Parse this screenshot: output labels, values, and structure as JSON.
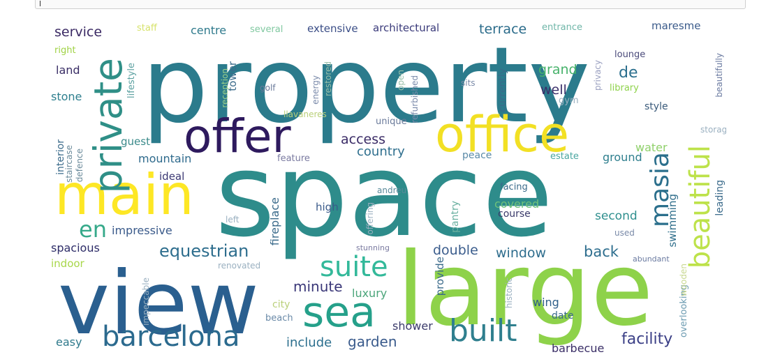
{
  "input": {
    "value": ""
  },
  "wordcloud": {
    "background": "#ffffff",
    "palette": "viridis",
    "words": [
      {
        "text": "property",
        "color": "#2b7b8c"
      },
      {
        "text": "space",
        "color": "#2e8c8b"
      },
      {
        "text": "view",
        "color": "#2a5f8f"
      },
      {
        "text": "large",
        "color": "#8ed24a"
      },
      {
        "text": "main",
        "color": "#fde725"
      },
      {
        "text": "office",
        "color": "#f2e024"
      },
      {
        "text": "offer",
        "color": "#2e1a5e"
      },
      {
        "text": "private",
        "color": "#2f8f87"
      },
      {
        "text": "sea",
        "color": "#25a08a"
      },
      {
        "text": "barcelona",
        "color": "#2b6a8e"
      },
      {
        "text": "built",
        "color": "#2f7f8e"
      },
      {
        "text": "suite",
        "color": "#33b99a"
      },
      {
        "text": "beautiful",
        "color": "#bde24a"
      },
      {
        "text": "masia",
        "color": "#2b6f8c"
      },
      {
        "text": "en",
        "color": "#36a98a"
      },
      {
        "text": "equestrian",
        "color": "#2d6d8d"
      },
      {
        "text": "service",
        "color": "#3b2a64"
      },
      {
        "text": "terrace",
        "color": "#2a6b8a"
      },
      {
        "text": "facility",
        "color": "#3b3f86"
      },
      {
        "text": "garden",
        "color": "#3a5b8c"
      },
      {
        "text": "include",
        "color": "#2c6f8e"
      },
      {
        "text": "grand",
        "color": "#47b26b"
      },
      {
        "text": "de",
        "color": "#2b6f8e"
      },
      {
        "text": "well",
        "color": "#3a2e69"
      },
      {
        "text": "window",
        "color": "#2e6d8d"
      },
      {
        "text": "back",
        "color": "#2e6e8e"
      },
      {
        "text": "double",
        "color": "#3a5c8c"
      },
      {
        "text": "minute",
        "color": "#3a3778"
      },
      {
        "text": "luxury",
        "color": "#4ba57a"
      },
      {
        "text": "access",
        "color": "#3a2b66"
      },
      {
        "text": "country",
        "color": "#2f6f8e"
      },
      {
        "text": "mountain",
        "color": "#2e6a8c"
      },
      {
        "text": "impressive",
        "color": "#3a5a8a"
      },
      {
        "text": "spacious",
        "color": "#2e2d68"
      },
      {
        "text": "indoor",
        "color": "#a8d74a"
      },
      {
        "text": "stone",
        "color": "#2e7f8e"
      },
      {
        "text": "land",
        "color": "#3a2e66"
      },
      {
        "text": "right",
        "color": "#9fd243"
      },
      {
        "text": "guest",
        "color": "#3a8a8a"
      },
      {
        "text": "ideal",
        "color": "#3a3772"
      },
      {
        "text": "easy",
        "color": "#2f7a8c"
      },
      {
        "text": "centre",
        "color": "#2f7a8c"
      },
      {
        "text": "staff",
        "color": "#d6e26a"
      },
      {
        "text": "several",
        "color": "#80c8a0"
      },
      {
        "text": "extensive",
        "color": "#3a4d86"
      },
      {
        "text": "architectural",
        "color": "#3a3a7a"
      },
      {
        "text": "entrance",
        "color": "#6fb6a8"
      },
      {
        "text": "maresme",
        "color": "#3a5a8a"
      },
      {
        "text": "lounge",
        "color": "#4a4a7a"
      },
      {
        "text": "library",
        "color": "#8ed24a"
      },
      {
        "text": "style",
        "color": "#3a5a7a"
      },
      {
        "text": "water",
        "color": "#8fd06a"
      },
      {
        "text": "ground",
        "color": "#2f7f8e"
      },
      {
        "text": "estate",
        "color": "#4aa6a0"
      },
      {
        "text": "second",
        "color": "#2f8f8e"
      },
      {
        "text": "swimming",
        "color": "#2e6d8a"
      },
      {
        "text": "leading",
        "color": "#3a6a8a"
      },
      {
        "text": "wing",
        "color": "#2f5f8a"
      },
      {
        "text": "date",
        "color": "#3a6a8a"
      },
      {
        "text": "shower",
        "color": "#3a3a6a"
      },
      {
        "text": "barbecue",
        "color": "#3a2e66"
      },
      {
        "text": "covered",
        "color": "#6fc27a"
      },
      {
        "text": "course",
        "color": "#3a3a6a"
      },
      {
        "text": "high",
        "color": "#3a5a8a"
      },
      {
        "text": "fireplace",
        "color": "#3a6a8a"
      },
      {
        "text": "peace",
        "color": "#5a8aa8"
      },
      {
        "text": "feature",
        "color": "#7a7aa0"
      },
      {
        "text": "unique",
        "color": "#6a7a9a"
      },
      {
        "text": "golf",
        "color": "#6a7a9a"
      },
      {
        "text": "tower",
        "color": "#3a6a8a"
      },
      {
        "text": "lifestyle",
        "color": "#5aa0a0"
      },
      {
        "text": "interior",
        "color": "#3a6a8a"
      },
      {
        "text": "staircase",
        "color": "#6a8a9a"
      },
      {
        "text": "defence",
        "color": "#6a8a9a"
      },
      {
        "text": "reception",
        "color": "#9ad08a"
      },
      {
        "text": "llavaneres",
        "color": "#bad07a"
      },
      {
        "text": "energy",
        "color": "#7a8aaa"
      },
      {
        "text": "restored",
        "color": "#9ac0aa"
      },
      {
        "text": "refurbished",
        "color": "#7a8aaa"
      },
      {
        "text": "currently",
        "color": "#3a6a8a"
      },
      {
        "text": "open",
        "color": "#9ac0aa"
      },
      {
        "text": "privacy",
        "color": "#9aa0c0"
      },
      {
        "text": "beautifully",
        "color": "#6a7aa0"
      },
      {
        "text": "city",
        "color": "#bad07a"
      },
      {
        "text": "beach",
        "color": "#6a8aa8"
      },
      {
        "text": "provide",
        "color": "#3a6a8a"
      },
      {
        "text": "historic",
        "color": "#9ab0c0"
      },
      {
        "text": "overlooking",
        "color": "#6a9ab0"
      },
      {
        "text": "abundant",
        "color": "#6a7aa0"
      },
      {
        "text": "used",
        "color": "#7a8aa8"
      },
      {
        "text": "facing",
        "color": "#3a6a8a"
      },
      {
        "text": "andreu",
        "color": "#5a8a9a"
      },
      {
        "text": "pantry",
        "color": "#6ab0a0"
      },
      {
        "text": "offering",
        "color": "#9ab0c0"
      },
      {
        "text": "left",
        "color": "#9ab0c0"
      },
      {
        "text": "stunning",
        "color": "#7a7aa0"
      },
      {
        "text": "renovated",
        "color": "#9ab0c0"
      },
      {
        "text": "impeccable",
        "color": "#9ab0c0"
      },
      {
        "text": "wooden",
        "color": "#c8d890"
      },
      {
        "text": "gym",
        "color": "#9ab0c0"
      },
      {
        "text": "sits",
        "color": "#7a8aa8"
      },
      {
        "text": "storage",
        "color": "#9ab0c0"
      }
    ]
  }
}
